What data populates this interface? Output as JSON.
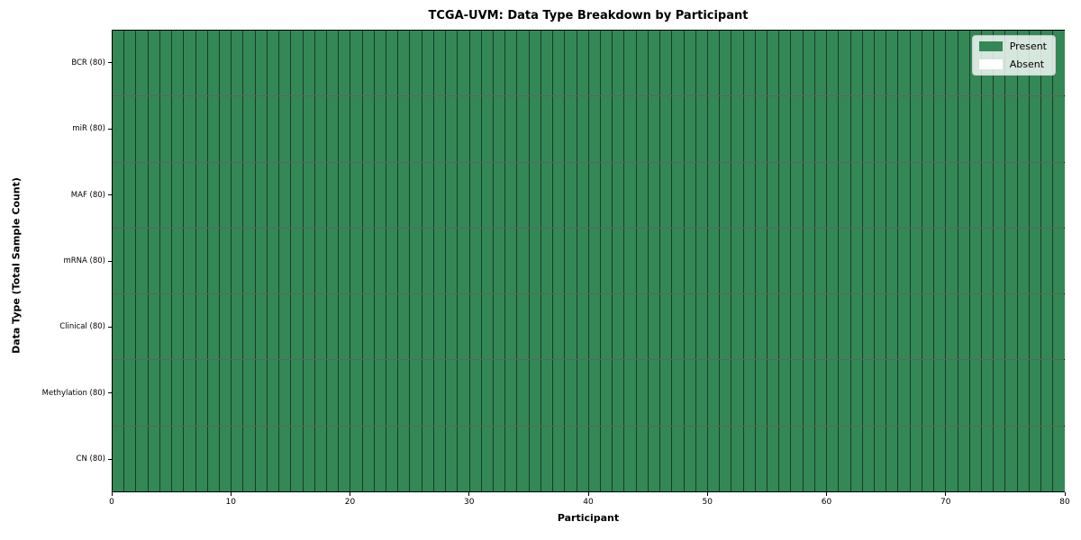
{
  "figure": {
    "background_color": "#ffffff"
  },
  "chart_data": {
    "type": "heatmap",
    "title": "TCGA-UVM: Data Type Breakdown by Participant",
    "xlabel": "Participant",
    "ylabel": "Data Type (Total Sample Count)",
    "x_range": [
      0,
      80
    ],
    "x_ticks": [
      0,
      10,
      20,
      30,
      40,
      50,
      60,
      70,
      80
    ],
    "n_participants": 80,
    "grid": "cell-edges",
    "legend": {
      "position": "upper-right",
      "entries": [
        {
          "label": "Present",
          "color": "#338856"
        },
        {
          "label": "Absent",
          "color": "#ffffff"
        }
      ]
    },
    "colors": {
      "present": "#338856",
      "absent": "#ffffff",
      "grid_line": "rgba(0,0,0,0.55)",
      "border": "#000000"
    },
    "rows": [
      {
        "label": "BCR (80)",
        "present_count": 80,
        "values": [
          1,
          1,
          1,
          1,
          1,
          1,
          1,
          1,
          1,
          1,
          1,
          1,
          1,
          1,
          1,
          1,
          1,
          1,
          1,
          1,
          1,
          1,
          1,
          1,
          1,
          1,
          1,
          1,
          1,
          1,
          1,
          1,
          1,
          1,
          1,
          1,
          1,
          1,
          1,
          1,
          1,
          1,
          1,
          1,
          1,
          1,
          1,
          1,
          1,
          1,
          1,
          1,
          1,
          1,
          1,
          1,
          1,
          1,
          1,
          1,
          1,
          1,
          1,
          1,
          1,
          1,
          1,
          1,
          1,
          1,
          1,
          1,
          1,
          1,
          1,
          1,
          1,
          1,
          1,
          1
        ]
      },
      {
        "label": "miR (80)",
        "present_count": 80,
        "values": [
          1,
          1,
          1,
          1,
          1,
          1,
          1,
          1,
          1,
          1,
          1,
          1,
          1,
          1,
          1,
          1,
          1,
          1,
          1,
          1,
          1,
          1,
          1,
          1,
          1,
          1,
          1,
          1,
          1,
          1,
          1,
          1,
          1,
          1,
          1,
          1,
          1,
          1,
          1,
          1,
          1,
          1,
          1,
          1,
          1,
          1,
          1,
          1,
          1,
          1,
          1,
          1,
          1,
          1,
          1,
          1,
          1,
          1,
          1,
          1,
          1,
          1,
          1,
          1,
          1,
          1,
          1,
          1,
          1,
          1,
          1,
          1,
          1,
          1,
          1,
          1,
          1,
          1,
          1,
          1
        ]
      },
      {
        "label": "MAF (80)",
        "present_count": 80,
        "values": [
          1,
          1,
          1,
          1,
          1,
          1,
          1,
          1,
          1,
          1,
          1,
          1,
          1,
          1,
          1,
          1,
          1,
          1,
          1,
          1,
          1,
          1,
          1,
          1,
          1,
          1,
          1,
          1,
          1,
          1,
          1,
          1,
          1,
          1,
          1,
          1,
          1,
          1,
          1,
          1,
          1,
          1,
          1,
          1,
          1,
          1,
          1,
          1,
          1,
          1,
          1,
          1,
          1,
          1,
          1,
          1,
          1,
          1,
          1,
          1,
          1,
          1,
          1,
          1,
          1,
          1,
          1,
          1,
          1,
          1,
          1,
          1,
          1,
          1,
          1,
          1,
          1,
          1,
          1,
          1
        ]
      },
      {
        "label": "mRNA (80)",
        "present_count": 80,
        "values": [
          1,
          1,
          1,
          1,
          1,
          1,
          1,
          1,
          1,
          1,
          1,
          1,
          1,
          1,
          1,
          1,
          1,
          1,
          1,
          1,
          1,
          1,
          1,
          1,
          1,
          1,
          1,
          1,
          1,
          1,
          1,
          1,
          1,
          1,
          1,
          1,
          1,
          1,
          1,
          1,
          1,
          1,
          1,
          1,
          1,
          1,
          1,
          1,
          1,
          1,
          1,
          1,
          1,
          1,
          1,
          1,
          1,
          1,
          1,
          1,
          1,
          1,
          1,
          1,
          1,
          1,
          1,
          1,
          1,
          1,
          1,
          1,
          1,
          1,
          1,
          1,
          1,
          1,
          1,
          1
        ]
      },
      {
        "label": "Clinical (80)",
        "present_count": 80,
        "values": [
          1,
          1,
          1,
          1,
          1,
          1,
          1,
          1,
          1,
          1,
          1,
          1,
          1,
          1,
          1,
          1,
          1,
          1,
          1,
          1,
          1,
          1,
          1,
          1,
          1,
          1,
          1,
          1,
          1,
          1,
          1,
          1,
          1,
          1,
          1,
          1,
          1,
          1,
          1,
          1,
          1,
          1,
          1,
          1,
          1,
          1,
          1,
          1,
          1,
          1,
          1,
          1,
          1,
          1,
          1,
          1,
          1,
          1,
          1,
          1,
          1,
          1,
          1,
          1,
          1,
          1,
          1,
          1,
          1,
          1,
          1,
          1,
          1,
          1,
          1,
          1,
          1,
          1,
          1,
          1
        ]
      },
      {
        "label": "Methylation (80)",
        "present_count": 80,
        "values": [
          1,
          1,
          1,
          1,
          1,
          1,
          1,
          1,
          1,
          1,
          1,
          1,
          1,
          1,
          1,
          1,
          1,
          1,
          1,
          1,
          1,
          1,
          1,
          1,
          1,
          1,
          1,
          1,
          1,
          1,
          1,
          1,
          1,
          1,
          1,
          1,
          1,
          1,
          1,
          1,
          1,
          1,
          1,
          1,
          1,
          1,
          1,
          1,
          1,
          1,
          1,
          1,
          1,
          1,
          1,
          1,
          1,
          1,
          1,
          1,
          1,
          1,
          1,
          1,
          1,
          1,
          1,
          1,
          1,
          1,
          1,
          1,
          1,
          1,
          1,
          1,
          1,
          1,
          1,
          1
        ]
      },
      {
        "label": "CN (80)",
        "present_count": 80,
        "values": [
          1,
          1,
          1,
          1,
          1,
          1,
          1,
          1,
          1,
          1,
          1,
          1,
          1,
          1,
          1,
          1,
          1,
          1,
          1,
          1,
          1,
          1,
          1,
          1,
          1,
          1,
          1,
          1,
          1,
          1,
          1,
          1,
          1,
          1,
          1,
          1,
          1,
          1,
          1,
          1,
          1,
          1,
          1,
          1,
          1,
          1,
          1,
          1,
          1,
          1,
          1,
          1,
          1,
          1,
          1,
          1,
          1,
          1,
          1,
          1,
          1,
          1,
          1,
          1,
          1,
          1,
          1,
          1,
          1,
          1,
          1,
          1,
          1,
          1,
          1,
          1,
          1,
          1,
          1,
          1
        ]
      }
    ]
  }
}
